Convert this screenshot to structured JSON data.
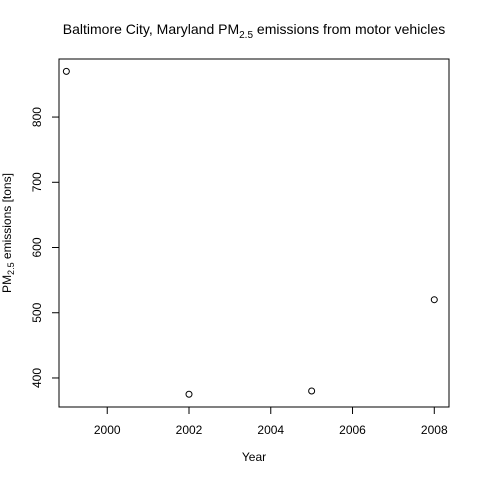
{
  "chart_data": {
    "type": "scatter",
    "title": {
      "prefix": "Baltimore City, Maryland PM",
      "subscript": "2.5",
      "suffix": " emissions from motor vehicles"
    },
    "xlabel": "Year",
    "ylabel": {
      "prefix": "PM",
      "subscript": "2.5",
      "suffix": " emissions [tons]"
    },
    "x_ticks": [
      2000,
      2002,
      2004,
      2006,
      2008
    ],
    "y_ticks": [
      400,
      500,
      600,
      700,
      800
    ],
    "xlim": [
      1998.82,
      2008.36
    ],
    "ylim": [
      355.5,
      889.0
    ],
    "points": [
      {
        "x": 1999,
        "y": 870
      },
      {
        "x": 2002,
        "y": 375
      },
      {
        "x": 2005,
        "y": 380
      },
      {
        "x": 2008,
        "y": 520
      }
    ],
    "grid": false,
    "legend": "none",
    "marker": "open-circle"
  }
}
